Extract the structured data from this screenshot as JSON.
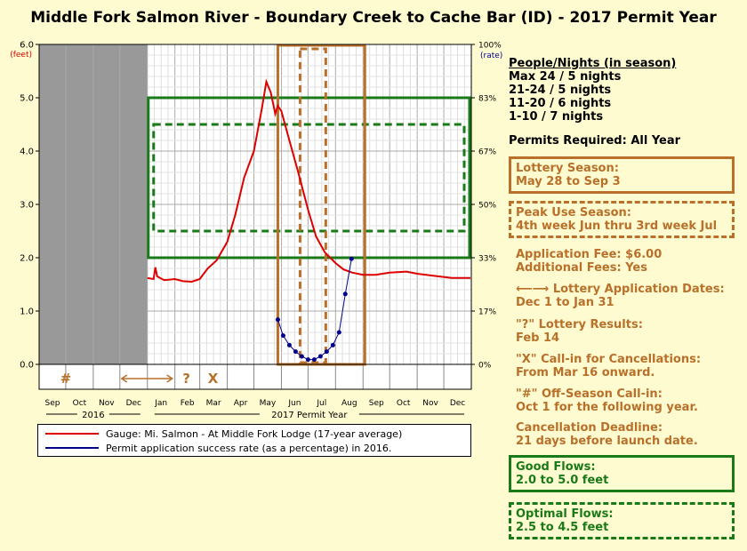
{
  "title": "Middle Fork Salmon River - Boundary Creek to Cache Bar (ID) - 2017 Permit Year",
  "chart_data": {
    "type": "line",
    "left_axis": {
      "unit_label": "(feet)",
      "ticks": [
        "0.0",
        "1.0",
        "2.0",
        "3.0",
        "4.0",
        "5.0",
        "6.0"
      ],
      "ylim": [
        0,
        6
      ]
    },
    "right_axis": {
      "unit_label": "(rate)",
      "ticks": [
        "0%",
        "17%",
        "33%",
        "50%",
        "67%",
        "83%",
        "100%"
      ],
      "ylim": [
        0,
        100
      ]
    },
    "months": [
      "Sep",
      "Oct",
      "Nov",
      "Dec",
      "Jan",
      "Feb",
      "Mar",
      "Apr",
      "May",
      "Jun",
      "Jul",
      "Aug",
      "Sep",
      "Oct",
      "Nov",
      "Dec"
    ],
    "year_labels": [
      "2016",
      "2017 Permit Year"
    ],
    "symbols": {
      "offseason": "#",
      "results": "?",
      "callin": "X"
    },
    "offseason_gray_range": [
      "2016-09-01",
      "2016-12-31"
    ],
    "gauge_series": {
      "name": "Gauge: Mi. Salmon - At Middle Fork Lodge (17-year average)",
      "color": "#dd0000",
      "points": [
        [
          "2017-01-01",
          1.62
        ],
        [
          "2017-01-08",
          1.6
        ],
        [
          "2017-01-10",
          1.82
        ],
        [
          "2017-01-12",
          1.65
        ],
        [
          "2017-01-20",
          1.58
        ],
        [
          "2017-02-01",
          1.6
        ],
        [
          "2017-02-10",
          1.56
        ],
        [
          "2017-02-20",
          1.55
        ],
        [
          "2017-03-01",
          1.6
        ],
        [
          "2017-03-10",
          1.8
        ],
        [
          "2017-03-20",
          1.95
        ],
        [
          "2017-04-01",
          2.3
        ],
        [
          "2017-04-10",
          2.8
        ],
        [
          "2017-04-20",
          3.5
        ],
        [
          "2017-05-01",
          4.0
        ],
        [
          "2017-05-10",
          4.8
        ],
        [
          "2017-05-15",
          5.3
        ],
        [
          "2017-05-20",
          5.1
        ],
        [
          "2017-05-25",
          4.7
        ],
        [
          "2017-05-28",
          4.85
        ],
        [
          "2017-06-01",
          4.75
        ],
        [
          "2017-06-10",
          4.2
        ],
        [
          "2017-06-20",
          3.6
        ],
        [
          "2017-07-01",
          2.9
        ],
        [
          "2017-07-10",
          2.4
        ],
        [
          "2017-07-20",
          2.1
        ],
        [
          "2017-08-01",
          1.9
        ],
        [
          "2017-08-10",
          1.78
        ],
        [
          "2017-08-20",
          1.72
        ],
        [
          "2017-09-01",
          1.68
        ],
        [
          "2017-09-15",
          1.68
        ],
        [
          "2017-10-01",
          1.72
        ],
        [
          "2017-10-20",
          1.74
        ],
        [
          "2017-11-01",
          1.7
        ],
        [
          "2017-11-20",
          1.66
        ],
        [
          "2017-12-10",
          1.62
        ],
        [
          "2017-12-31",
          1.62
        ]
      ]
    },
    "success_series": {
      "name": "Permit application success rate (as a percentage) in 2016.",
      "color": "#00008b",
      "points": [
        [
          "2017-05-28",
          14
        ],
        [
          "2017-06-03",
          9
        ],
        [
          "2017-06-10",
          6
        ],
        [
          "2017-06-17",
          4
        ],
        [
          "2017-06-24",
          2.5
        ],
        [
          "2017-07-01",
          1.5
        ],
        [
          "2017-07-08",
          1.5
        ],
        [
          "2017-07-15",
          2.5
        ],
        [
          "2017-07-22",
          4
        ],
        [
          "2017-07-29",
          6
        ],
        [
          "2017-08-05",
          10
        ],
        [
          "2017-08-12",
          22
        ],
        [
          "2017-08-19",
          33
        ]
      ]
    },
    "lottery_season": [
      "2017-05-28",
      "2017-09-03"
    ],
    "peak_season": [
      "2017-06-22",
      "2017-07-21"
    ],
    "good_flows": [
      2.0,
      5.0
    ],
    "optimal_flows": [
      2.5,
      4.5
    ],
    "application_dates": [
      "2016-12-01",
      "2017-01-31"
    ],
    "callin_date": "2017-03-16",
    "results_date": "2017-02-14",
    "offseason_callin_date": "2016-10-01",
    "colors": {
      "orange": "#b8702a",
      "green": "#1a7a1a",
      "gray": "#999999"
    }
  },
  "side": {
    "people_title": "People/Nights (in season)",
    "people": [
      "Max 24 / 5 nights",
      "21-24 / 5 nights",
      "11-20 / 6 nights",
      "1-10 / 7 nights"
    ],
    "permits": "Permits Required: All Year",
    "lottery_title": "Lottery Season:",
    "lottery_value": "May 28 to Sep 3",
    "peak_title": "Peak Use Season:",
    "peak_value": "4th week Jun thru 3rd week Jul",
    "fee1": "Application Fee: $6.00",
    "fee2": "Additional Fees: Yes",
    "app_arrow": "⟵⟶",
    "app_title": "Lottery Application Dates:",
    "app_value": "Dec 1 to Jan 31",
    "results_title": "\"?\" Lottery Results:",
    "results_value": "Feb 14",
    "callin_title": "\"X\" Call-in for Cancellations:",
    "callin_value": "From Mar 16 onward.",
    "offseason_title": "\"#\" Off-Season Call-in:",
    "offseason_value": "Oct 1 for the following year.",
    "cancel_title": "Cancellation Deadline:",
    "cancel_value": "21 days before launch date.",
    "good_title": "Good Flows:",
    "good_value": "2.0 to 5.0 feet",
    "optimal_title": "Optimal Flows:",
    "optimal_value": "2.5 to 4.5 feet"
  }
}
